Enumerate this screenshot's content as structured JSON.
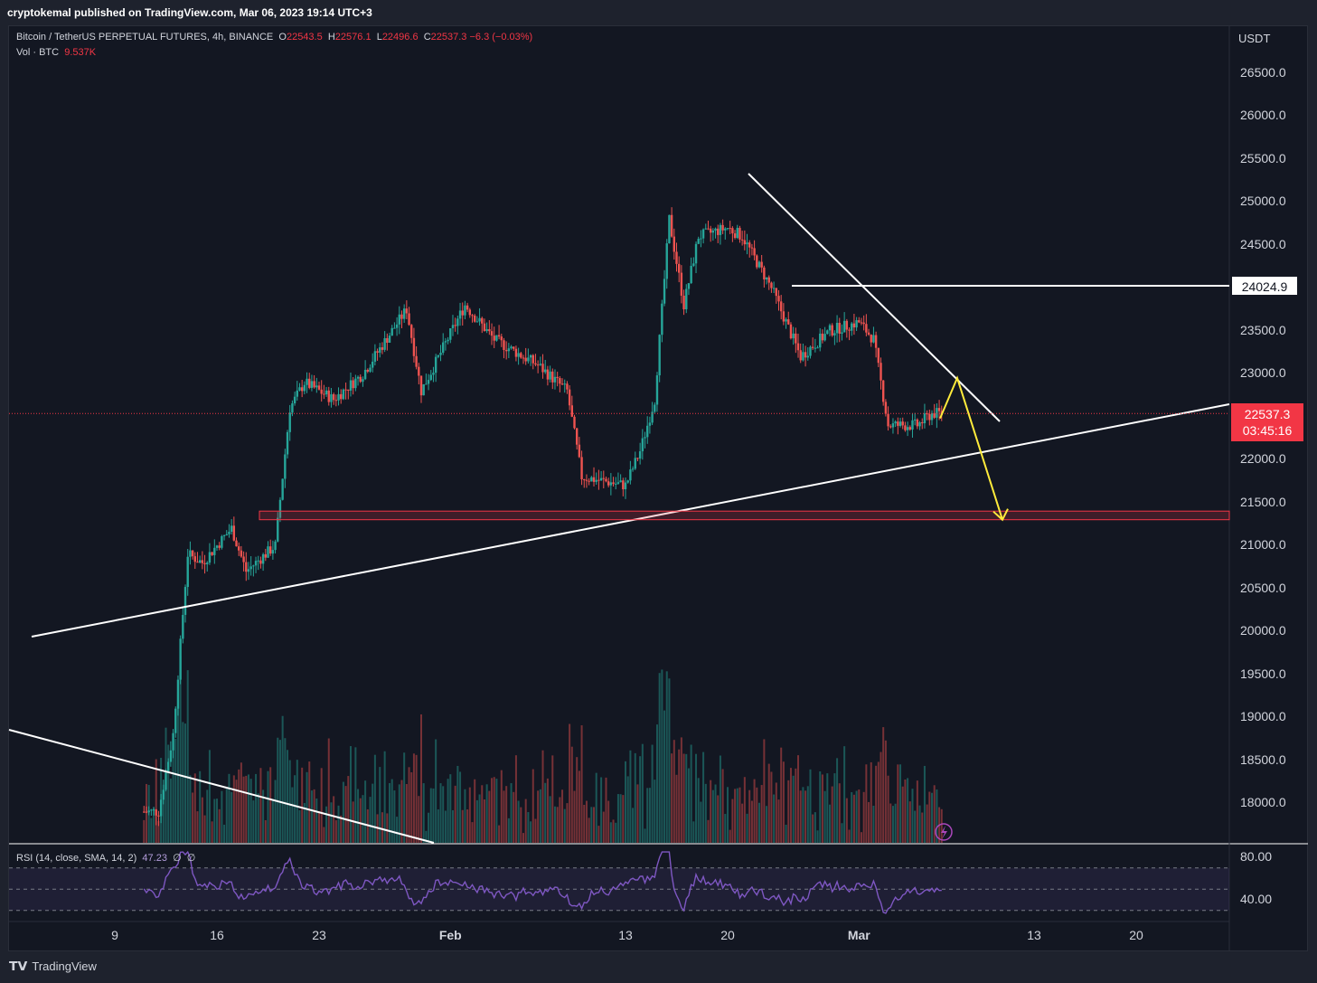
{
  "header": {
    "publisher_line": "cryptokemal published on TradingView.com, Mar 06, 2023 19:14 UTC+3"
  },
  "legend": {
    "symbol": "Bitcoin / TetherUS PERPETUAL FUTURES, 4h, BINANCE",
    "open_label": "O",
    "open": "22543.5",
    "high_label": "H",
    "high": "22576.1",
    "low_label": "L",
    "low": "22496.6",
    "close_label": "C",
    "close": "22537.3",
    "change": "−6.3 (−0.03%)",
    "volume_label": "Vol · BTC",
    "volume": "9.537K"
  },
  "rsi_legend": {
    "label": "RSI (14, close, SMA, 14, 2)",
    "value": "47.23",
    "extra1": "∅",
    "extra2": "∅"
  },
  "price_axis": {
    "currency": "USDT",
    "ticks": [
      "26500.0",
      "26000.0",
      "25500.0",
      "25000.0",
      "24500.0",
      "24000.0",
      "23500.0",
      "23000.0",
      "22500.0",
      "22000.0",
      "21500.0",
      "21000.0",
      "20500.0",
      "20000.0",
      "19500.0",
      "19000.0",
      "18500.0",
      "18000.0"
    ],
    "level_tag": "24024.9",
    "price_tag": "22537.3",
    "countdown_tag": "03:45:16"
  },
  "rsi_axis": {
    "ticks": [
      "80.00",
      "40.00"
    ]
  },
  "time_axis": {
    "ticks": [
      "9",
      "16",
      "23",
      "Feb",
      "13",
      "20",
      "Mar",
      "13",
      "20"
    ]
  },
  "footer": {
    "brand": "TradingView"
  },
  "colors": {
    "up": "#26a69a",
    "down": "#ef5350",
    "background": "#131722",
    "annotation_white": "#ffffff",
    "annotation_yellow": "#ffeb3b",
    "zone": "#f23645",
    "rsi_line": "#7e57c2"
  },
  "chart_data": {
    "type": "candlestick",
    "timeframe": "4h",
    "y_axis": {
      "min": 17700,
      "max": 26800,
      "unit": "USDT"
    },
    "rsi_range": {
      "levels": [
        70,
        50,
        30
      ]
    },
    "price_path": [
      {
        "date": "2023-01-12",
        "price": 17900
      },
      {
        "date": "2023-01-13",
        "price": 18800
      },
      {
        "date": "2023-01-14",
        "price": 20900
      },
      {
        "date": "2023-01-15",
        "price": 20800
      },
      {
        "date": "2023-01-17",
        "price": 21200
      },
      {
        "date": "2023-01-18",
        "price": 20700
      },
      {
        "date": "2023-01-20",
        "price": 21000
      },
      {
        "date": "2023-01-21",
        "price": 22600
      },
      {
        "date": "2023-01-22",
        "price": 22900
      },
      {
        "date": "2023-01-24",
        "price": 22700
      },
      {
        "date": "2023-01-26",
        "price": 23000
      },
      {
        "date": "2023-01-29",
        "price": 23750
      },
      {
        "date": "2023-01-30",
        "price": 22800
      },
      {
        "date": "2023-02-02",
        "price": 23800
      },
      {
        "date": "2023-02-04",
        "price": 23400
      },
      {
        "date": "2023-02-07",
        "price": 23100
      },
      {
        "date": "2023-02-09",
        "price": 22800
      },
      {
        "date": "2023-02-10",
        "price": 21800
      },
      {
        "date": "2023-02-13",
        "price": 21700
      },
      {
        "date": "2023-02-14",
        "price": 22100
      },
      {
        "date": "2023-02-15",
        "price": 22700
      },
      {
        "date": "2023-02-16",
        "price": 24800
      },
      {
        "date": "2023-02-17",
        "price": 23800
      },
      {
        "date": "2023-02-18",
        "price": 24600
      },
      {
        "date": "2023-02-20",
        "price": 24700
      },
      {
        "date": "2023-02-21",
        "price": 24600
      },
      {
        "date": "2023-02-23",
        "price": 24000
      },
      {
        "date": "2023-02-25",
        "price": 23200
      },
      {
        "date": "2023-02-27",
        "price": 23500
      },
      {
        "date": "2023-03-01",
        "price": 23600
      },
      {
        "date": "2023-03-02",
        "price": 23400
      },
      {
        "date": "2023-03-03",
        "price": 22400
      },
      {
        "date": "2023-03-05",
        "price": 22400
      },
      {
        "date": "2023-03-06",
        "price": 22537.3
      }
    ],
    "annotations": {
      "horizontal_level": 24024.9,
      "support_zone": [
        21300,
        21400
      ],
      "projection": [
        {
          "date": "2023-03-07",
          "price": 22950
        },
        {
          "date": "2023-03-12",
          "price": 21300
        }
      ]
    }
  }
}
